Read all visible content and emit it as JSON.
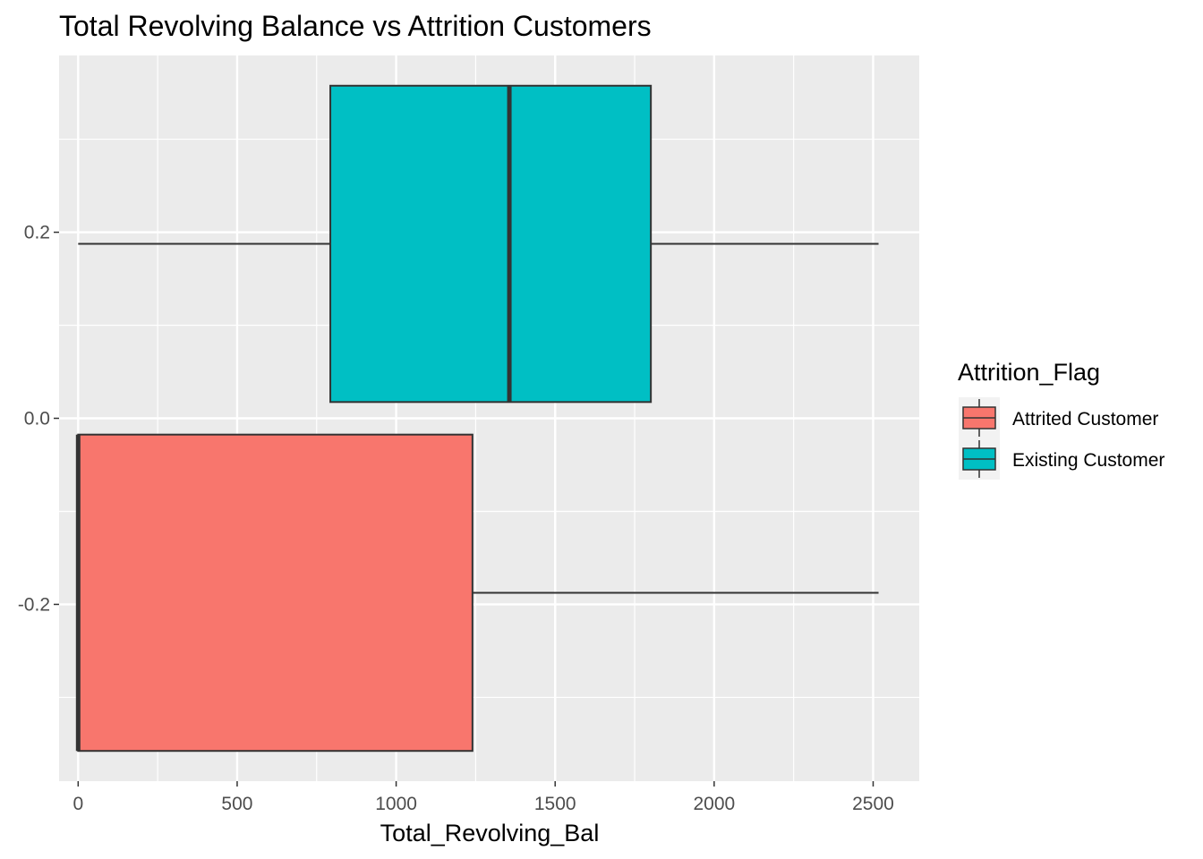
{
  "chart_data": {
    "type": "boxplot",
    "orientation": "horizontal",
    "title": "Total Revolving Balance vs  Attrition Customers",
    "xlabel": "Total_Revolving_Bal",
    "ylabel": "",
    "xlim": [
      -60,
      2645
    ],
    "ylim": [
      -0.39,
      0.39
    ],
    "x_ticks": [
      0,
      500,
      1000,
      1500,
      2000,
      2500
    ],
    "x_tick_labels": [
      "0",
      "500",
      "1000",
      "1500",
      "2000",
      "2500"
    ],
    "y_ticks": [
      -0.2,
      0.0,
      0.2
    ],
    "y_tick_labels": [
      "-0.2",
      "0.0",
      "0.2"
    ],
    "grid": true,
    "legend_position": "right",
    "legend_title": "Attrition_Flag",
    "series": [
      {
        "name": "Attrited Customer",
        "color": "#F8766D",
        "min": 0,
        "q1": 0,
        "median": 0,
        "q3": 1240,
        "max": 2517,
        "y_center": -0.1875,
        "y_low": -0.3575,
        "y_high": -0.0175
      },
      {
        "name": "Existing Customer",
        "color": "#00BFC4",
        "min": 0,
        "q1": 793,
        "median": 1356,
        "q3": 1801,
        "max": 2517,
        "y_center": 0.1875,
        "y_low": 0.0175,
        "y_high": 0.3575
      }
    ],
    "colors": {
      "panel_background": "#EBEBEB",
      "grid_major": "#FFFFFF",
      "outline": "#333333"
    }
  }
}
